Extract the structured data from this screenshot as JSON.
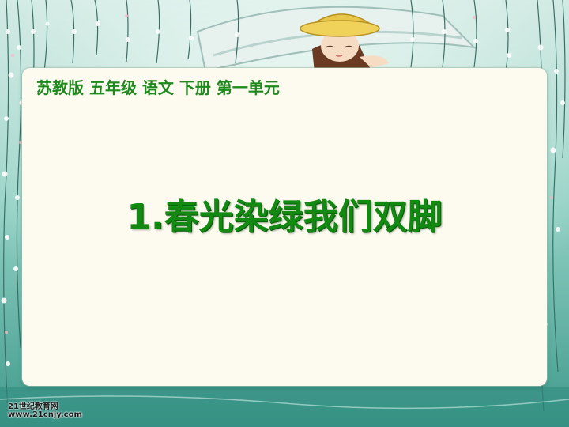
{
  "slide": {
    "subtitle": "苏教版  五年级  语文  下册  第一单元",
    "title": "1.春光染绿我们双脚"
  },
  "watermark": {
    "line1": "21世纪教育网",
    "line2": "www.21cnjy.com"
  },
  "colors": {
    "title_green": "#128a12",
    "subtitle_green": "#1e8a1e",
    "panel_bg": "#fdfbef",
    "backdrop_teal": "#5fb4a4"
  },
  "icons": [
    "girl-in-boat-illustration",
    "blossom-branch-icon"
  ]
}
